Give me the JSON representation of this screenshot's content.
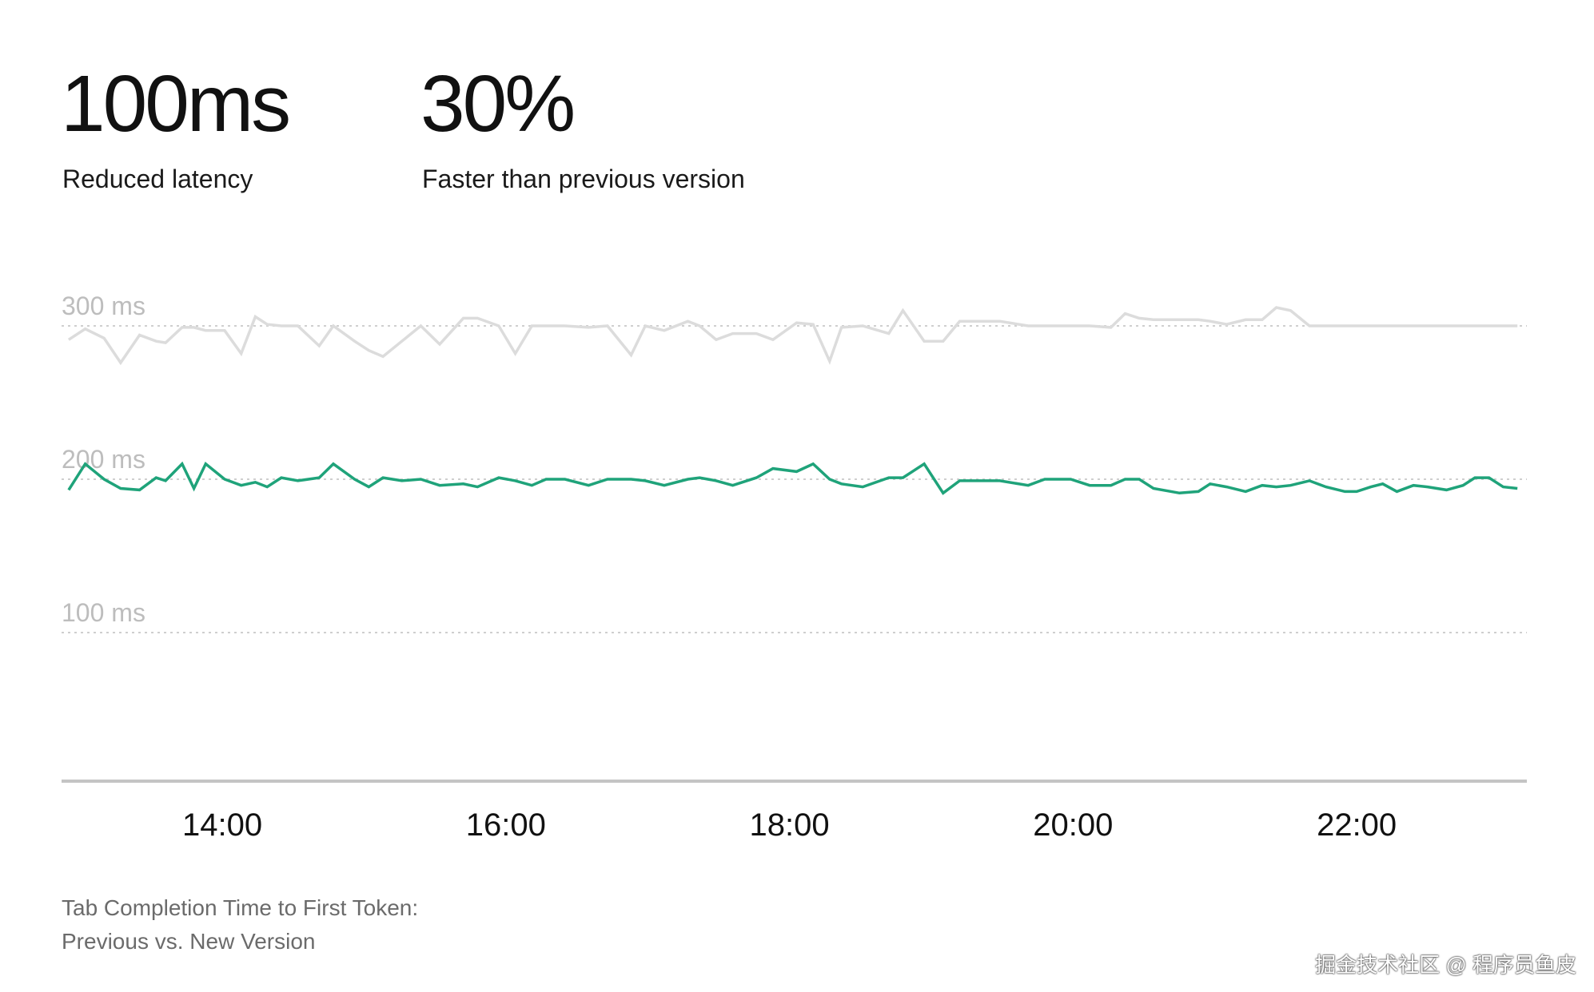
{
  "stats": [
    {
      "value": "100ms",
      "label": "Reduced latency"
    },
    {
      "value": "30%",
      "label": "Faster than previous version"
    }
  ],
  "caption": {
    "line1": "Tab Completion Time to First Token:",
    "line2": "Previous vs. New Version"
  },
  "watermark": "掘金技术社区 @ 程序员鱼皮",
  "colors": {
    "previous": "#dcdcdc",
    "new": "#1fa37a",
    "axis_label": "#bdbdbd",
    "gridline": "#cfcfcf",
    "baseline": "#c4c4c4",
    "tick_label": "#111111"
  },
  "chart_data": {
    "type": "line",
    "title": "",
    "xlabel": "",
    "ylabel": "",
    "xlim": [
      "12:52",
      "23:12"
    ],
    "ylim": [
      0,
      300
    ],
    "y_ticks": [
      {
        "value": 100,
        "label": "100 ms"
      },
      {
        "value": 200,
        "label": "200 ms"
      },
      {
        "value": 300,
        "label": "300 ms"
      }
    ],
    "x_ticks": [
      "14:00",
      "16:00",
      "18:00",
      "20:00",
      "22:00"
    ],
    "grid": true,
    "legend": "none",
    "x": [
      "12:55",
      "13:02",
      "13:10",
      "13:17",
      "13:25",
      "13:32",
      "13:36",
      "13:43",
      "13:48",
      "13:53",
      "14:01",
      "14:08",
      "14:14",
      "14:19",
      "14:25",
      "14:32",
      "14:41",
      "14:47",
      "14:56",
      "15:02",
      "15:08",
      "15:16",
      "15:24",
      "15:32",
      "15:42",
      "15:48",
      "15:57",
      "16:04",
      "16:11",
      "16:17",
      "16:25",
      "16:35",
      "16:43",
      "16:53",
      "16:59",
      "17:07",
      "17:17",
      "17:22",
      "17:29",
      "17:36",
      "17:46",
      "17:53",
      "18:03",
      "18:10",
      "18:17",
      "18:22",
      "18:31",
      "18:42",
      "18:48",
      "18:57",
      "19:05",
      "19:12",
      "19:18",
      "19:29",
      "19:41",
      "19:48",
      "19:53",
      "19:59",
      "20:07",
      "20:16",
      "20:22",
      "20:28",
      "20:34",
      "20:45",
      "20:53",
      "20:58",
      "21:05",
      "21:13",
      "21:20",
      "21:26",
      "21:32",
      "21:40",
      "21:47",
      "21:55",
      "22:00",
      "22:06",
      "22:11",
      "22:17",
      "22:24",
      "22:30",
      "22:38",
      "22:45",
      "22:50",
      "22:56",
      "23:02",
      "23:08"
    ],
    "series": [
      {
        "values": [
          291,
          298,
          292,
          276,
          294,
          290,
          289,
          299,
          299,
          297,
          297,
          282,
          306,
          301,
          300,
          300,
          287,
          300,
          290,
          284,
          280,
          290,
          300,
          288,
          305,
          305,
          300,
          282,
          300,
          300,
          300,
          299,
          300,
          281,
          300,
          297,
          303,
          300,
          291,
          295,
          295,
          291,
          302,
          301,
          277,
          299,
          300,
          295,
          310,
          290,
          290,
          303,
          303,
          303,
          300,
          300,
          300,
          300,
          300,
          299,
          308,
          305,
          304,
          304,
          304,
          303,
          301,
          304,
          304,
          312,
          310,
          300,
          300,
          300,
          300,
          300,
          300,
          300,
          300,
          300,
          300,
          300,
          300,
          300,
          300,
          300
        ]
      },
      {
        "values": [
          193,
          210,
          200,
          194,
          193,
          201,
          199,
          210,
          194,
          210,
          200,
          196,
          198,
          195,
          201,
          199,
          201,
          210,
          200,
          195,
          201,
          199,
          200,
          196,
          197,
          195,
          201,
          199,
          196,
          200,
          200,
          196,
          200,
          200,
          199,
          196,
          200,
          201,
          199,
          196,
          201,
          207,
          205,
          210,
          200,
          197,
          195,
          201,
          201,
          210,
          191,
          199,
          199,
          199,
          196,
          200,
          200,
          200,
          196,
          196,
          200,
          200,
          194,
          191,
          192,
          197,
          195,
          192,
          196,
          195,
          196,
          199,
          195,
          192,
          192,
          195,
          197,
          192,
          196,
          195,
          193,
          196,
          201,
          201,
          195,
          194
        ]
      }
    ]
  }
}
